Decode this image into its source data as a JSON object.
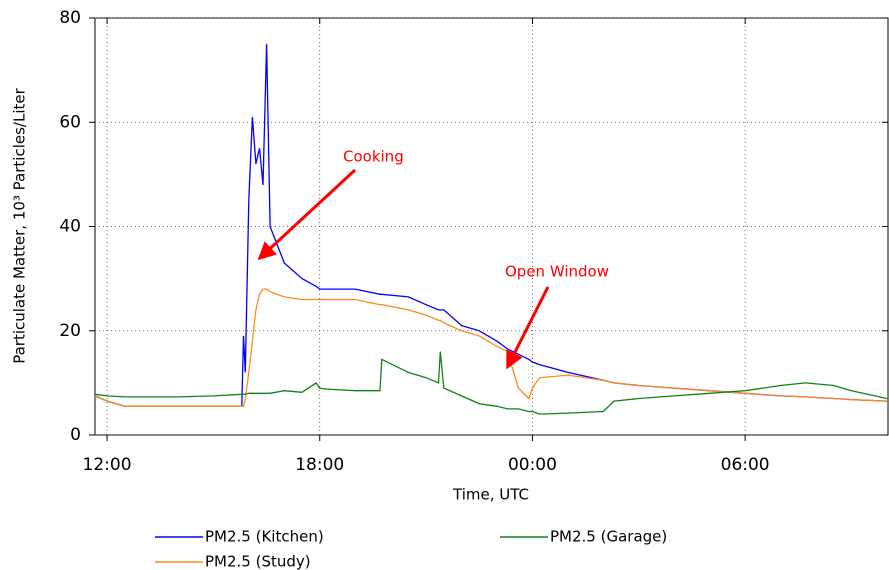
{
  "chart_data": {
    "type": "line",
    "y_label": "Particulate Matter, 10³ Particles/Liter",
    "x_label": "Time, UTC",
    "x": [
      11.66,
      12,
      12.5,
      14,
      15,
      15.8,
      15.85,
      15.9,
      16.0,
      16.1,
      16.2,
      16.3,
      16.4,
      16.5,
      16.6,
      17,
      17.5,
      17.9,
      18,
      18.2,
      19,
      19.7,
      19.75,
      20.5,
      21,
      21.35,
      21.4,
      21.5,
      22,
      22.5,
      23,
      23.3,
      23.6,
      23.9,
      24,
      24.2,
      25,
      26,
      26.3,
      27,
      28,
      29,
      30,
      31,
      31.7,
      32,
      32.5,
      33,
      34
    ],
    "series": [
      {
        "name": "PM2.5 (Kitchen)",
        "color": "#0000ff",
        "values": [
          7.5,
          6.5,
          5.5,
          5.5,
          5.5,
          5.5,
          19,
          12,
          45,
          61,
          52,
          55,
          48,
          75,
          40,
          33,
          30,
          28.5,
          28,
          28,
          28,
          27,
          27,
          26.5,
          25,
          24,
          24,
          24,
          21,
          20,
          18,
          16.5,
          15.5,
          14.5,
          14,
          13.5,
          12,
          10.5,
          10,
          9.5,
          9,
          8.5,
          8,
          7.5,
          7.3,
          7.2,
          7,
          6.8,
          6.5
        ]
      },
      {
        "name": "PM2.5 (Study)",
        "color": "#ff8c1a",
        "values": [
          7.5,
          6.5,
          5.5,
          5.5,
          5.5,
          5.5,
          5.5,
          7,
          12,
          18,
          24,
          27,
          28,
          28,
          27.5,
          26.5,
          26,
          26,
          26,
          26,
          26,
          25,
          25,
          24,
          23,
          22,
          22,
          21.5,
          20,
          19,
          17,
          16,
          9,
          7,
          9,
          11,
          11.5,
          10.5,
          10,
          9.5,
          9,
          8.5,
          8,
          7.5,
          7.3,
          7.2,
          7,
          6.8,
          6.5
        ]
      },
      {
        "name": "PM2.5 (Garage)",
        "color": "#128312",
        "values": [
          7.8,
          7.5,
          7.3,
          7.3,
          7.5,
          7.8,
          7.8,
          7.8,
          8,
          8,
          8,
          8,
          8,
          8,
          8,
          8.5,
          8.2,
          10,
          9,
          8.8,
          8.5,
          8.5,
          14.5,
          12,
          11,
          10,
          16,
          9,
          7.5,
          6,
          5.5,
          5,
          5,
          4.5,
          4.5,
          4,
          4.2,
          4.5,
          6.5,
          7,
          7.5,
          8,
          8.5,
          9.5,
          10,
          9.8,
          9.5,
          8.5,
          7
        ]
      }
    ],
    "xlim": [
      11.66,
      34.03
    ],
    "xticks": [
      {
        "value": 12,
        "label": "12:00"
      },
      {
        "value": 18,
        "label": "18:00"
      },
      {
        "value": 24,
        "label": "00:00"
      },
      {
        "value": 30,
        "label": "06:00"
      }
    ],
    "ylim": [
      0,
      80
    ],
    "yticks": [
      0,
      20,
      40,
      60,
      80
    ],
    "grid": true,
    "annotations": [
      "Cooking",
      "Open Window"
    ]
  }
}
